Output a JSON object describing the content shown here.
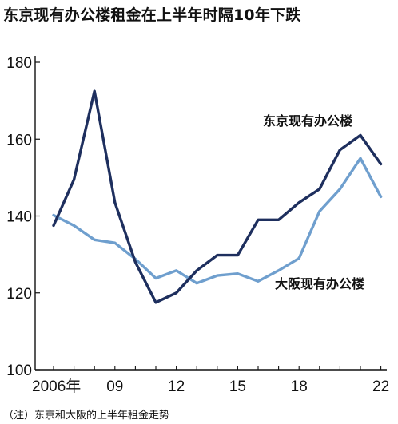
{
  "chart_data": {
    "type": "line",
    "title": "东京现有办公楼租金在上半年时隔10年下跌",
    "note": "（注）东京和大阪的上半年租金走势",
    "ylim": [
      100,
      180
    ],
    "yticks": [
      "100",
      "120",
      "140",
      "160",
      "180"
    ],
    "xlim": [
      2006,
      2022.5
    ],
    "xtick_values": [
      2006,
      2009,
      2012,
      2015,
      2018,
      2022
    ],
    "xtick_labels": [
      "2006年",
      "09",
      "12",
      "15",
      "18",
      "22"
    ],
    "grid": false,
    "series": [
      {
        "name": "东京现有办公楼",
        "color": "#1e2f5e",
        "points": [
          [
            2006.0,
            137.5
          ],
          [
            2007.0,
            149.5
          ],
          [
            2008.0,
            172.5
          ],
          [
            2009.0,
            143.5
          ],
          [
            2010.0,
            128.0
          ],
          [
            2011.0,
            117.5
          ],
          [
            2012.0,
            120.0
          ],
          [
            2013.0,
            125.8
          ],
          [
            2014.0,
            129.8
          ],
          [
            2015.0,
            129.8
          ],
          [
            2016.0,
            139.0
          ],
          [
            2017.0,
            139.0
          ],
          [
            2018.0,
            143.5
          ],
          [
            2019.0,
            147.0
          ],
          [
            2020.0,
            157.2
          ],
          [
            2021.0,
            161.0
          ],
          [
            2022.0,
            153.5
          ]
        ]
      },
      {
        "name": "大阪现有办公楼",
        "color": "#6f9fce",
        "points": [
          [
            2006.0,
            140.2
          ],
          [
            2007.0,
            137.5
          ],
          [
            2008.0,
            133.8
          ],
          [
            2009.0,
            133.0
          ],
          [
            2010.0,
            128.8
          ],
          [
            2011.0,
            123.8
          ],
          [
            2012.0,
            125.8
          ],
          [
            2013.0,
            122.5
          ],
          [
            2014.0,
            124.5
          ],
          [
            2015.0,
            125.0
          ],
          [
            2016.0,
            123.0
          ],
          [
            2017.0,
            125.8
          ],
          [
            2018.0,
            129.0
          ],
          [
            2019.0,
            141.2
          ],
          [
            2020.0,
            147.0
          ],
          [
            2021.0,
            155.0
          ],
          [
            2022.0,
            145.0
          ]
        ]
      }
    ]
  }
}
